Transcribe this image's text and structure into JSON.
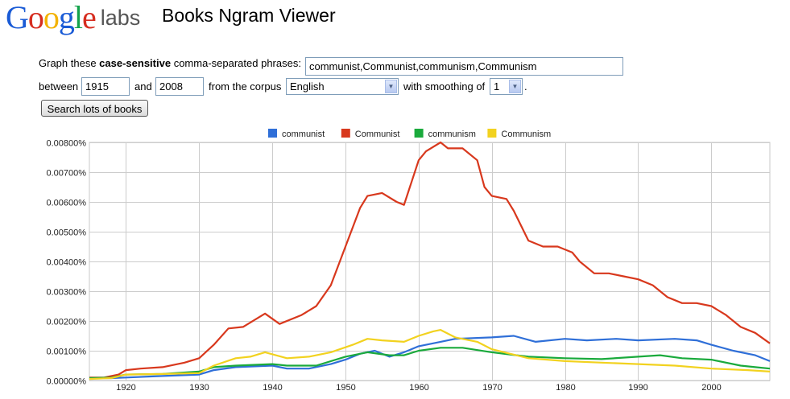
{
  "brand": {
    "logo_letters": [
      {
        "ch": "G",
        "color": "#1a5bd6"
      },
      {
        "ch": "o",
        "color": "#d62d20"
      },
      {
        "ch": "o",
        "color": "#f3b200"
      },
      {
        "ch": "g",
        "color": "#1a5bd6"
      },
      {
        "ch": "l",
        "color": "#13a24b"
      },
      {
        "ch": "e",
        "color": "#d62d20"
      }
    ],
    "labs": "labs",
    "app_title": "Books Ngram Viewer"
  },
  "form": {
    "graph_prefix": "Graph these",
    "graph_bold": "case-sensitive",
    "graph_suffix": "comma-separated phrases:",
    "phrases_value": "communist,Communist,communism,Communism",
    "between_label": "between",
    "start_year": "1915",
    "and_label": "and",
    "end_year": "2008",
    "corpus_label": "from the corpus",
    "corpus_value": "English",
    "smoothing_label": "with smoothing of",
    "smoothing_value": "1",
    "period": ".",
    "search_button": "Search lots of books"
  },
  "chart_data": {
    "type": "line",
    "xlim": [
      1915,
      2008
    ],
    "ylim": [
      0,
      0.008
    ],
    "x_ticks": [
      1920,
      1930,
      1940,
      1950,
      1960,
      1970,
      1980,
      1990,
      2000
    ],
    "y_ticks": [
      0,
      0.001,
      0.002,
      0.003,
      0.004,
      0.005,
      0.006,
      0.007,
      0.008
    ],
    "y_tick_labels": [
      "0.00000%",
      "0.00100%",
      "0.00200%",
      "0.00300%",
      "0.00400%",
      "0.00500%",
      "0.00600%",
      "0.00700%",
      "0.00800%"
    ],
    "x_tick_labels": [
      "1920",
      "1930",
      "1940",
      "1950",
      "1960",
      "1970",
      "1980",
      "1990",
      "2000"
    ],
    "legend_position": "top-center",
    "grid": true,
    "series": [
      {
        "name": "communist",
        "color": "#2f6fd8",
        "points": [
          [
            1915,
            8e-05
          ],
          [
            1918,
            8e-05
          ],
          [
            1920,
            0.0001
          ],
          [
            1925,
            0.00015
          ],
          [
            1930,
            0.0002
          ],
          [
            1932,
            0.00035
          ],
          [
            1935,
            0.00045
          ],
          [
            1940,
            0.0005
          ],
          [
            1942,
            0.0004
          ],
          [
            1945,
            0.0004
          ],
          [
            1948,
            0.00055
          ],
          [
            1950,
            0.0007
          ],
          [
            1952,
            0.0009
          ],
          [
            1954,
            0.001
          ],
          [
            1956,
            0.0008
          ],
          [
            1958,
            0.00095
          ],
          [
            1960,
            0.00115
          ],
          [
            1963,
            0.0013
          ],
          [
            1965,
            0.0014
          ],
          [
            1970,
            0.00145
          ],
          [
            1973,
            0.0015
          ],
          [
            1976,
            0.0013
          ],
          [
            1980,
            0.0014
          ],
          [
            1983,
            0.00135
          ],
          [
            1987,
            0.0014
          ],
          [
            1990,
            0.00135
          ],
          [
            1995,
            0.0014
          ],
          [
            1998,
            0.00135
          ],
          [
            2000,
            0.0012
          ],
          [
            2003,
            0.001
          ],
          [
            2006,
            0.00085
          ],
          [
            2008,
            0.00065
          ]
        ]
      },
      {
        "name": "Communist",
        "color": "#d8381d",
        "points": [
          [
            1915,
            0.0001
          ],
          [
            1917,
            0.0001
          ],
          [
            1919,
            0.0002
          ],
          [
            1920,
            0.00035
          ],
          [
            1922,
            0.0004
          ],
          [
            1925,
            0.00045
          ],
          [
            1928,
            0.0006
          ],
          [
            1930,
            0.00075
          ],
          [
            1932,
            0.0012
          ],
          [
            1934,
            0.00175
          ],
          [
            1936,
            0.0018
          ],
          [
            1939,
            0.00225
          ],
          [
            1941,
            0.0019
          ],
          [
            1944,
            0.0022
          ],
          [
            1946,
            0.0025
          ],
          [
            1948,
            0.0032
          ],
          [
            1950,
            0.0045
          ],
          [
            1952,
            0.0058
          ],
          [
            1953,
            0.0062
          ],
          [
            1955,
            0.0063
          ],
          [
            1957,
            0.006
          ],
          [
            1958,
            0.0059
          ],
          [
            1960,
            0.0074
          ],
          [
            1961,
            0.0077
          ],
          [
            1963,
            0.008
          ],
          [
            1964,
            0.0078
          ],
          [
            1966,
            0.0078
          ],
          [
            1968,
            0.0074
          ],
          [
            1969,
            0.0065
          ],
          [
            1970,
            0.0062
          ],
          [
            1972,
            0.0061
          ],
          [
            1973,
            0.0057
          ],
          [
            1975,
            0.0047
          ],
          [
            1977,
            0.0045
          ],
          [
            1979,
            0.0045
          ],
          [
            1981,
            0.0043
          ],
          [
            1982,
            0.004
          ],
          [
            1984,
            0.0036
          ],
          [
            1986,
            0.0036
          ],
          [
            1988,
            0.0035
          ],
          [
            1990,
            0.0034
          ],
          [
            1992,
            0.0032
          ],
          [
            1994,
            0.0028
          ],
          [
            1996,
            0.0026
          ],
          [
            1998,
            0.0026
          ],
          [
            2000,
            0.0025
          ],
          [
            2002,
            0.0022
          ],
          [
            2004,
            0.0018
          ],
          [
            2006,
            0.0016
          ],
          [
            2008,
            0.00125
          ]
        ]
      },
      {
        "name": "communism",
        "color": "#1aaa3c",
        "points": [
          [
            1915,
            8e-05
          ],
          [
            1918,
            0.0001
          ],
          [
            1920,
            0.0002
          ],
          [
            1925,
            0.00022
          ],
          [
            1930,
            0.0003
          ],
          [
            1932,
            0.00045
          ],
          [
            1935,
            0.0005
          ],
          [
            1940,
            0.00055
          ],
          [
            1942,
            0.0005
          ],
          [
            1946,
            0.0005
          ],
          [
            1950,
            0.0008
          ],
          [
            1953,
            0.00095
          ],
          [
            1956,
            0.00085
          ],
          [
            1958,
            0.00085
          ],
          [
            1960,
            0.001
          ],
          [
            1963,
            0.0011
          ],
          [
            1966,
            0.0011
          ],
          [
            1970,
            0.00095
          ],
          [
            1975,
            0.0008
          ],
          [
            1980,
            0.00075
          ],
          [
            1985,
            0.00072
          ],
          [
            1990,
            0.0008
          ],
          [
            1993,
            0.00085
          ],
          [
            1996,
            0.00075
          ],
          [
            2000,
            0.0007
          ],
          [
            2004,
            0.0005
          ],
          [
            2006,
            0.00045
          ],
          [
            2008,
            0.0004
          ]
        ]
      },
      {
        "name": "Communism",
        "color": "#f2d21f",
        "points": [
          [
            1915,
            5e-05
          ],
          [
            1918,
            8e-05
          ],
          [
            1920,
            0.0002
          ],
          [
            1925,
            0.00022
          ],
          [
            1930,
            0.00025
          ],
          [
            1932,
            0.0005
          ],
          [
            1935,
            0.00075
          ],
          [
            1937,
            0.0008
          ],
          [
            1939,
            0.00095
          ],
          [
            1942,
            0.00075
          ],
          [
            1945,
            0.0008
          ],
          [
            1948,
            0.00095
          ],
          [
            1951,
            0.0012
          ],
          [
            1953,
            0.0014
          ],
          [
            1955,
            0.00135
          ],
          [
            1958,
            0.0013
          ],
          [
            1960,
            0.0015
          ],
          [
            1962,
            0.00165
          ],
          [
            1963,
            0.0017
          ],
          [
            1965,
            0.00145
          ],
          [
            1968,
            0.0013
          ],
          [
            1970,
            0.00105
          ],
          [
            1975,
            0.00075
          ],
          [
            1980,
            0.00065
          ],
          [
            1985,
            0.0006
          ],
          [
            1990,
            0.00055
          ],
          [
            1995,
            0.0005
          ],
          [
            2000,
            0.0004
          ],
          [
            2005,
            0.00035
          ],
          [
            2008,
            0.0003
          ]
        ]
      }
    ]
  }
}
